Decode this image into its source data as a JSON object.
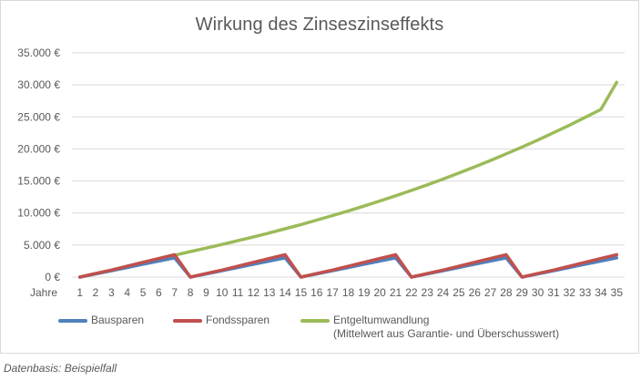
{
  "chart_data": {
    "type": "line",
    "title": "Wirkung des Zinseszinseffekts",
    "xlabel": "Jahre",
    "ylabel": "",
    "ylim": [
      0,
      35000
    ],
    "yticks": [
      "35.000 €",
      "30.000 €",
      "25.000 €",
      "20.000 €",
      "15.000 €",
      "10.000 €",
      "5.000 €",
      "0 €"
    ],
    "ytick_values": [
      35000,
      30000,
      25000,
      20000,
      15000,
      10000,
      5000,
      0
    ],
    "categories": [
      "1",
      "2",
      "3",
      "4",
      "5",
      "6",
      "7",
      "8",
      "9",
      "10",
      "11",
      "12",
      "13",
      "14",
      "15",
      "16",
      "17",
      "18",
      "19",
      "20",
      "21",
      "22",
      "23",
      "24",
      "25",
      "26",
      "27",
      "28",
      "29",
      "30",
      "31",
      "32",
      "33",
      "34",
      "35"
    ],
    "series": [
      {
        "name": "Bausparen",
        "color": "#4f81bd",
        "values": [
          0,
          500,
          1000,
          1500,
          2000,
          2500,
          3000,
          0,
          500,
          1000,
          1500,
          2000,
          2500,
          3000,
          0,
          500,
          1000,
          1500,
          2000,
          2500,
          3000,
          0,
          500,
          1000,
          1500,
          2000,
          2500,
          3000,
          0,
          500,
          1000,
          1500,
          2000,
          2500,
          3000
        ]
      },
      {
        "name": "Fondssparen",
        "color": "#c0504d",
        "values": [
          0,
          550,
          1100,
          1700,
          2300,
          2900,
          3500,
          0,
          550,
          1100,
          1700,
          2300,
          2900,
          3500,
          0,
          550,
          1100,
          1700,
          2300,
          2900,
          3500,
          0,
          550,
          1100,
          1700,
          2300,
          2900,
          3500,
          0,
          550,
          1100,
          1700,
          2300,
          2900,
          3500
        ]
      },
      {
        "name": "Entgeltumwandlung (Mittelwert aus Garantie- und Überschusswert)",
        "color": "#9bbb59",
        "values": [
          0,
          550,
          1100,
          1700,
          2300,
          2850,
          3400,
          3980,
          4530,
          5090,
          5670,
          6270,
          6890,
          7540,
          8200,
          8890,
          9600,
          10330,
          11090,
          11880,
          12690,
          13530,
          14400,
          15300,
          16240,
          17200,
          18200,
          19230,
          20290,
          21390,
          22530,
          23700,
          24920,
          26180,
          30400
        ]
      }
    ],
    "legend_position": "bottom",
    "grid": true
  },
  "legend": {
    "bausparen": "Bausparen",
    "fondssparen": "Fondssparen",
    "entgelt_line1": "Entgeltumwandlung",
    "entgelt_line2": "(Mittelwert aus Garantie- und Überschusswert)"
  },
  "footnote": "Datenbasis: Beispielfall"
}
